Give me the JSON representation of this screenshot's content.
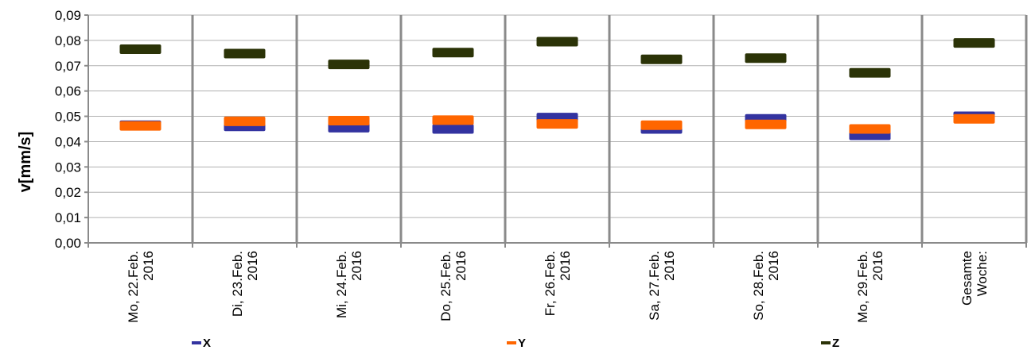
{
  "chart_data": {
    "type": "bar",
    "ylabel": "v[mm/s]",
    "ylim": [
      0,
      0.09
    ],
    "yticks": [
      "0,00",
      "0,01",
      "0,02",
      "0,03",
      "0,04",
      "0,05",
      "0,06",
      "0,07",
      "0,08",
      "0,09"
    ],
    "categories": [
      [
        "Mo, 22.Feb.",
        "2016"
      ],
      [
        "Di, 23.Feb.",
        "2016"
      ],
      [
        "Mi, 24.Feb.",
        "2016"
      ],
      [
        "Do, 25.Feb.",
        "2016"
      ],
      [
        "Fr, 26.Feb.",
        "2016"
      ],
      [
        "Sa, 27.Feb.",
        "2016"
      ],
      [
        "So, 28.Feb.",
        "2016"
      ],
      [
        "Mo, 29.Feb.",
        "2016"
      ],
      [
        "Gesamte",
        "Woche:"
      ]
    ],
    "grid": true,
    "legend_position": "bottom",
    "series": [
      {
        "name": "X",
        "color": "#3333a0",
        "values": [
          0.0465,
          0.046,
          0.0455,
          0.045,
          0.0495,
          0.045,
          0.049,
          0.0425,
          0.05
        ]
      },
      {
        "name": "Y",
        "color": "#ff6600",
        "values": [
          0.0462,
          0.048,
          0.0483,
          0.0485,
          0.047,
          0.0465,
          0.0468,
          0.045,
          0.049
        ]
      },
      {
        "name": "Z",
        "color": "#2b3307",
        "values": [
          0.0765,
          0.0748,
          0.0705,
          0.0752,
          0.0795,
          0.0725,
          0.073,
          0.0672,
          0.079
        ]
      }
    ]
  }
}
